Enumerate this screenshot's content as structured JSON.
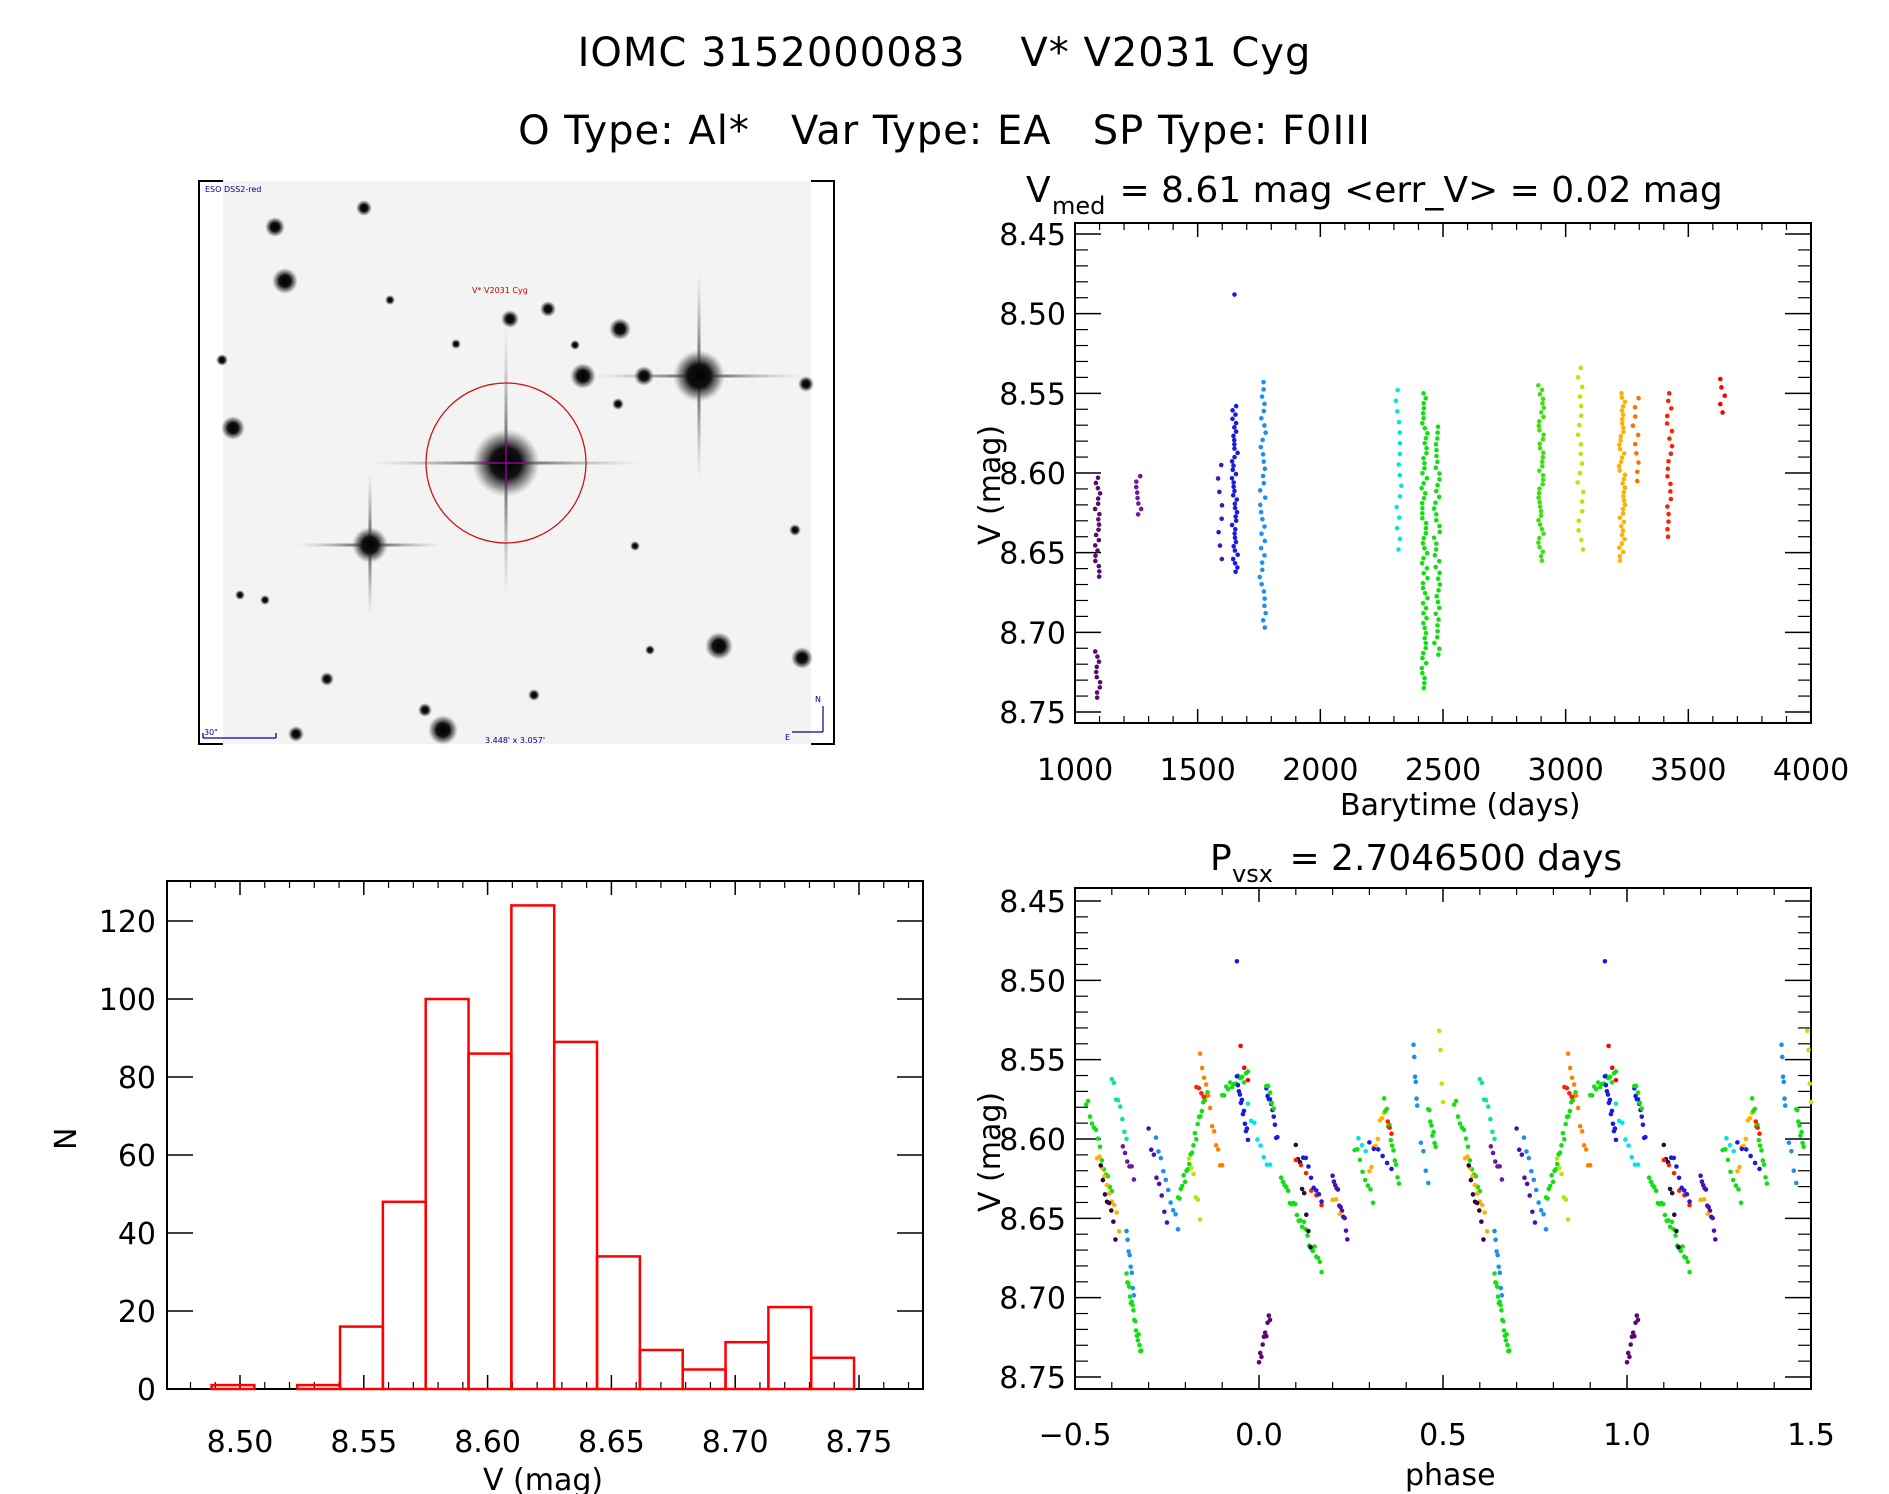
{
  "header": {
    "line1": "IOMC 3152000083    V* V2031 Cyg",
    "line2": "O Type: Al*   Var Type: EA   SP Type: F0III"
  },
  "sky_image": {
    "survey_label": "ESO DSS2-red",
    "target_label": "V* V2031 Cyg",
    "scale_bar_label": "30\"",
    "field_size_label": "3.448' x 3.057'",
    "compass_north": "N",
    "compass_east": "E",
    "colors": {
      "annotation": "#00008b",
      "target": "#cc0000",
      "crosshair": "#b000b0"
    }
  },
  "chart_data": [
    {
      "id": "light_curve",
      "type": "scatter",
      "title_main": "V",
      "title_sub": "med",
      "title_rest": " = 8.61 mag <err_V> = 0.02 mag",
      "xlabel": "Barytime (days)",
      "ylabel": "V (mag)",
      "xlim": [
        1000,
        4000
      ],
      "ylim": [
        8.45,
        8.75
      ],
      "y_inverted": true,
      "xticks": [
        "1000",
        "1500",
        "2000",
        "2500",
        "3000",
        "3500",
        "4000"
      ],
      "yticks": [
        "8.45",
        "8.50",
        "8.55",
        "8.60",
        "8.65",
        "8.70",
        "8.75"
      ],
      "groups": [
        {
          "x": 1090,
          "color": "#5a0a6e",
          "ymin": 8.603,
          "ymax": 8.665,
          "n": 20
        },
        {
          "x": 1092,
          "color": "#5a0a6e",
          "ymin": 8.712,
          "ymax": 8.741,
          "n": 10
        },
        {
          "x": 1258,
          "color": "#6a1aa0",
          "ymin": 8.602,
          "ymax": 8.626,
          "n": 8
        },
        {
          "x": 1590,
          "color": "#4a10b0",
          "ymin": 8.595,
          "ymax": 8.654,
          "n": 8
        },
        {
          "x": 1652,
          "color": "#1a1ae0",
          "ymin": 8.558,
          "ymax": 8.662,
          "n": 40
        },
        {
          "x": 1662,
          "color": "#1a1ae0",
          "ymin": 8.488,
          "ymax": 8.488,
          "n": 1
        },
        {
          "x": 1765,
          "color": "#1a90f0",
          "ymin": 8.543,
          "ymax": 8.697,
          "n": 35
        },
        {
          "x": 2320,
          "color": "#00e5e5",
          "ymin": 8.548,
          "ymax": 8.648,
          "n": 16
        },
        {
          "x": 2425,
          "color": "#10e010",
          "ymin": 8.55,
          "ymax": 8.735,
          "n": 60
        },
        {
          "x": 2475,
          "color": "#10e010",
          "ymin": 8.571,
          "ymax": 8.714,
          "n": 40
        },
        {
          "x": 2900,
          "color": "#40e010",
          "ymin": 8.545,
          "ymax": 8.655,
          "n": 40
        },
        {
          "x": 3060,
          "color": "#b8e800",
          "ymin": 8.534,
          "ymax": 8.648,
          "n": 20
        },
        {
          "x": 3230,
          "color": "#ffb000",
          "ymin": 8.55,
          "ymax": 8.655,
          "n": 40
        },
        {
          "x": 3285,
          "color": "#ff7000",
          "ymin": 8.553,
          "ymax": 8.605,
          "n": 10
        },
        {
          "x": 3425,
          "color": "#ff2000",
          "ymin": 8.55,
          "ymax": 8.64,
          "n": 20
        },
        {
          "x": 3640,
          "color": "#ff0000",
          "ymin": 8.541,
          "ymax": 8.562,
          "n": 5
        }
      ]
    },
    {
      "id": "histogram",
      "type": "bar",
      "xlabel": "V (mag)",
      "ylabel": "N",
      "xlim": [
        8.4705,
        8.776
      ],
      "ylim": [
        0,
        130
      ],
      "xticks": [
        "8.50",
        "8.55",
        "8.60",
        "8.65",
        "8.70",
        "8.75"
      ],
      "yticks": [
        "0",
        "20",
        "40",
        "60",
        "80",
        "100",
        "120"
      ],
      "bin_edges": [
        8.4885,
        8.5058,
        8.5231,
        8.5404,
        8.5577,
        8.575,
        8.5923,
        8.6096,
        8.6269,
        8.6442,
        8.6615,
        8.6788,
        8.6961,
        8.7134,
        8.7307,
        8.748
      ],
      "values": [
        1,
        0,
        1,
        16,
        48,
        100,
        86,
        124,
        89,
        34,
        10,
        5,
        12,
        21,
        8
      ],
      "color": "#ff0000"
    },
    {
      "id": "phased_curve",
      "type": "scatter",
      "title_main": "P",
      "title_sub": "vsx",
      "title_rest": " = 2.7046500 days",
      "xlabel": "phase",
      "ylabel": "V (mag)",
      "xlim": [
        -0.5,
        1.5
      ],
      "ylim": [
        8.45,
        8.75
      ],
      "y_inverted": true,
      "xticks": [
        "−0.5",
        "0.0",
        "0.5",
        "1.0",
        "1.5"
      ],
      "yticks": [
        "8.45",
        "8.50",
        "8.55",
        "8.60",
        "8.65",
        "8.70",
        "8.75"
      ],
      "period_days": 2.70465,
      "segments": [
        {
          "p0": -0.47,
          "p1": -0.4,
          "v0": 8.575,
          "v1": 8.635,
          "color": "#10e010",
          "n": 14
        },
        {
          "p0": -0.44,
          "p1": -0.38,
          "v0": 8.61,
          "v1": 8.655,
          "color": "#ffb000",
          "n": 10
        },
        {
          "p0": -0.43,
          "p1": -0.39,
          "v0": 8.62,
          "v1": 8.66,
          "color": "#2a0a3a",
          "n": 8
        },
        {
          "p0": -0.4,
          "p1": -0.36,
          "v0": 8.56,
          "v1": 8.6,
          "color": "#10e0a0",
          "n": 8
        },
        {
          "p0": -0.37,
          "p1": -0.34,
          "v0": 8.605,
          "v1": 8.625,
          "color": "#6a1aa0",
          "n": 6
        },
        {
          "p0": -0.36,
          "p1": -0.34,
          "v0": 8.655,
          "v1": 8.7,
          "color": "#1a90f0",
          "n": 8
        },
        {
          "p0": -0.36,
          "p1": -0.32,
          "v0": 8.685,
          "v1": 8.735,
          "color": "#10e010",
          "n": 18
        },
        {
          "p0": 0.0,
          "p1": 0.03,
          "v0": 8.741,
          "v1": 8.712,
          "color": "#5a0a6e",
          "n": 10
        },
        {
          "p0": -0.3,
          "p1": -0.25,
          "v0": 8.595,
          "v1": 8.655,
          "color": "#4a10b0",
          "n": 8
        },
        {
          "p0": -0.28,
          "p1": -0.22,
          "v0": 8.6,
          "v1": 8.655,
          "color": "#1a90f0",
          "n": 10
        },
        {
          "p0": -0.22,
          "p1": -0.14,
          "v0": 8.64,
          "v1": 8.57,
          "color": "#10e010",
          "n": 22
        },
        {
          "p0": -0.19,
          "p1": -0.16,
          "v0": 8.61,
          "v1": 8.65,
          "color": "#b8e800",
          "n": 6
        },
        {
          "p0": -0.16,
          "p1": -0.1,
          "v0": 8.55,
          "v1": 8.62,
          "color": "#ff8000",
          "n": 12
        },
        {
          "p0": -0.17,
          "p1": -0.15,
          "v0": 8.565,
          "v1": 8.575,
          "color": "#ff2000",
          "n": 4
        },
        {
          "p0": -0.1,
          "p1": -0.03,
          "v0": 8.57,
          "v1": 8.56,
          "color": "#10e010",
          "n": 14
        },
        {
          "p0": -0.06,
          "p1": -0.03,
          "v0": 8.56,
          "v1": 8.6,
          "color": "#1a1ae0",
          "n": 12
        },
        {
          "p0": -0.06,
          "p1": -0.06,
          "v0": 8.488,
          "v1": 8.488,
          "color": "#1a1ae0",
          "n": 1
        },
        {
          "p0": -0.05,
          "p1": -0.03,
          "v0": 8.542,
          "v1": 8.562,
          "color": "#ff0000",
          "n": 3
        },
        {
          "p0": -0.03,
          "p1": 0.03,
          "v0": 8.58,
          "v1": 8.62,
          "color": "#00e5e5",
          "n": 8
        },
        {
          "p0": 0.02,
          "p1": 0.05,
          "v0": 8.565,
          "v1": 8.6,
          "color": "#1a1ae0",
          "n": 10
        },
        {
          "p0": 0.02,
          "p1": 0.04,
          "v0": 8.565,
          "v1": 8.58,
          "color": "#10e010",
          "n": 5
        },
        {
          "p0": 0.06,
          "p1": 0.17,
          "v0": 8.625,
          "v1": 8.68,
          "color": "#10e010",
          "n": 24
        },
        {
          "p0": 0.1,
          "p1": 0.14,
          "v0": 8.6,
          "v1": 8.665,
          "color": "#2a0a3a",
          "n": 8
        },
        {
          "p0": 0.1,
          "p1": 0.17,
          "v0": 8.612,
          "v1": 8.64,
          "color": "#ff2000",
          "n": 6
        },
        {
          "p0": 0.12,
          "p1": 0.17,
          "v0": 8.61,
          "v1": 8.64,
          "color": "#1a1ae0",
          "n": 8
        },
        {
          "p0": 0.2,
          "p1": 0.24,
          "v0": 8.62,
          "v1": 8.66,
          "color": "#4a10b0",
          "n": 12
        },
        {
          "p0": 0.2,
          "p1": 0.22,
          "v0": 8.635,
          "v1": 8.645,
          "color": "#ffb000",
          "n": 3
        },
        {
          "p0": 0.26,
          "p1": 0.31,
          "v0": 8.605,
          "v1": 8.64,
          "color": "#10e010",
          "n": 8
        },
        {
          "p0": 0.27,
          "p1": 0.29,
          "v0": 8.6,
          "v1": 8.61,
          "color": "#00e5e5",
          "n": 3
        },
        {
          "p0": 0.3,
          "p1": 0.34,
          "v0": 8.62,
          "v1": 8.58,
          "color": "#ffb000",
          "n": 8
        },
        {
          "p0": 0.3,
          "p1": 0.36,
          "v0": 8.6,
          "v1": 8.62,
          "color": "#1a1ae0",
          "n": 6
        },
        {
          "p0": 0.34,
          "p1": 0.38,
          "v0": 8.575,
          "v1": 8.625,
          "color": "#10e010",
          "n": 12
        },
        {
          "p0": 0.35,
          "p1": 0.36,
          "v0": 8.59,
          "v1": 8.6,
          "color": "#ff2000",
          "n": 3
        },
        {
          "p0": 0.42,
          "p1": 0.43,
          "v0": 8.544,
          "v1": 8.58,
          "color": "#1a90f0",
          "n": 6
        },
        {
          "p0": 0.46,
          "p1": 0.48,
          "v0": 8.58,
          "v1": 8.605,
          "color": "#10e010",
          "n": 8
        },
        {
          "p0": 0.49,
          "p1": 0.5,
          "v0": 8.534,
          "v1": 8.575,
          "color": "#b8e800",
          "n": 4
        },
        {
          "p0": 0.44,
          "p1": 0.46,
          "v0": 8.6,
          "v1": 8.625,
          "color": "#1a90f0",
          "n": 4
        }
      ]
    }
  ]
}
